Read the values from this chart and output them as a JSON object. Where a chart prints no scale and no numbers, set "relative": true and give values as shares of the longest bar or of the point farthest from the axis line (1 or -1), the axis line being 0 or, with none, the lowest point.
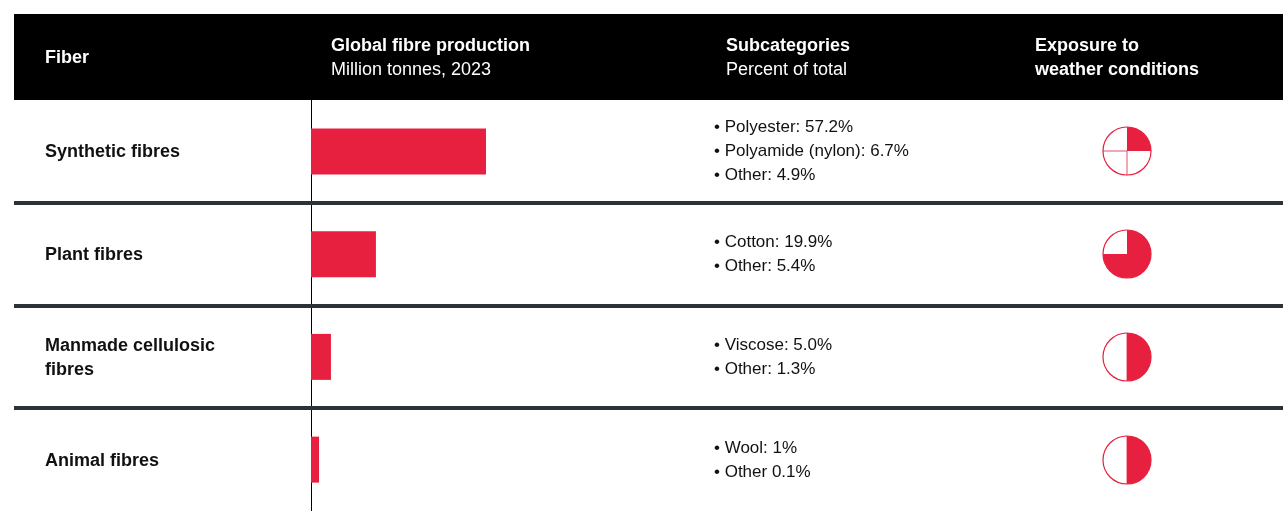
{
  "chart_data": {
    "type": "bar",
    "orientation": "horizontal",
    "relative": true,
    "ylabel": "Fiber",
    "xlabel": "Global fibre production\nMillion tonnes, 2023",
    "categories": [
      "Synthetic fibres",
      "Plant fibres",
      "Manmade cellulosic fibres",
      "Animal fibres"
    ],
    "values": [
      1,
      0.371,
      0.114,
      0.046
    ],
    "color": "#e8203f",
    "annotations": [
      "Subcategories\nPercent of total",
      "Exposure to\nweather conditions",
      "• Polyester: 57.2%\n• Polyamide (nylon): 6.7%\n• Other: 4.9%",
      "• Cotton: 19.9%\n• Other: 5.4%",
      "• Viscose: 5.0%\n• Other: 1.3%",
      "• Wool: 1%\n• Other 0.1%"
    ]
  }
}
